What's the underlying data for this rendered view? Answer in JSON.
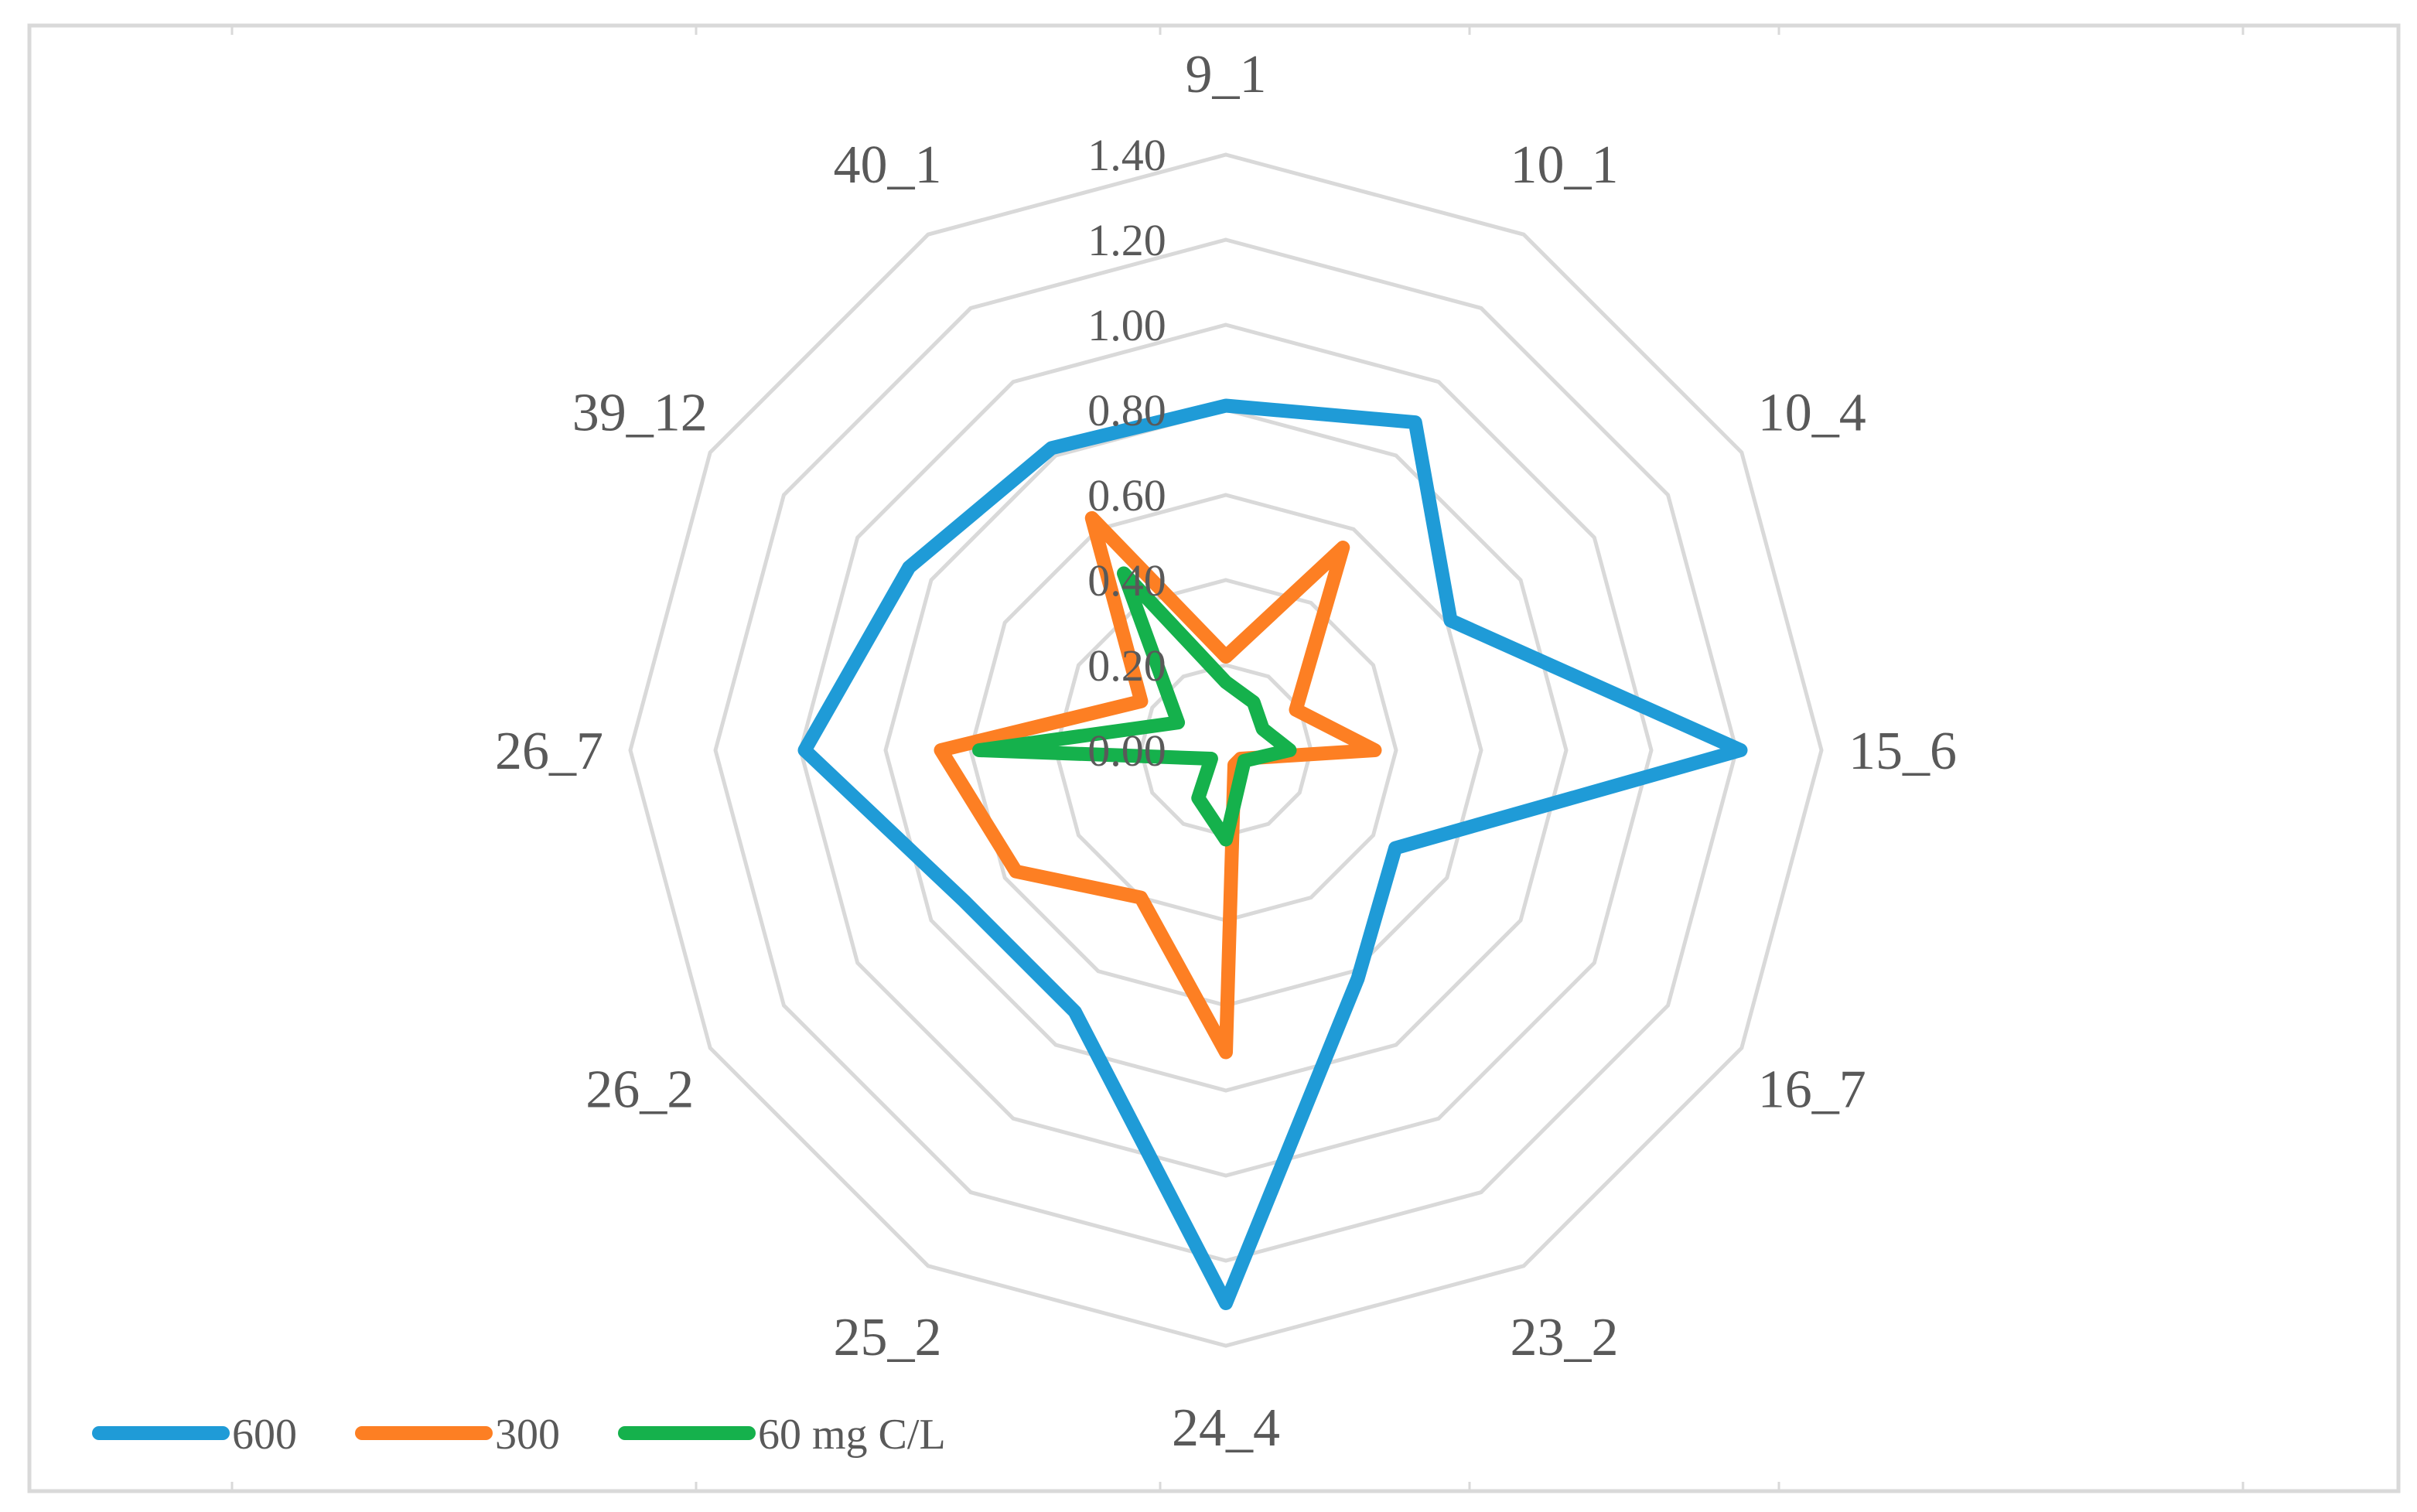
{
  "chart_data": {
    "type": "radar",
    "categories": [
      "9_1",
      "10_1",
      "10_4",
      "15_6",
      "16_7",
      "23_2",
      "24_4",
      "25_2",
      "26_2",
      "26_7",
      "39_12",
      "40_1"
    ],
    "radial_ticks": [
      "0.00",
      "0.20",
      "0.40",
      "0.60",
      "0.80",
      "1.00",
      "1.20",
      "1.40"
    ],
    "rlim": [
      0,
      1.4
    ],
    "series": [
      {
        "name": "600",
        "color": "#1f9bd7",
        "values": [
          0.81,
          0.89,
          0.61,
          1.21,
          0.46,
          0.62,
          1.3,
          0.71,
          0.71,
          0.99,
          0.86,
          0.82
        ]
      },
      {
        "name": "300",
        "color": "#fd7f23",
        "values": [
          0.22,
          0.55,
          0.19,
          0.35,
          0.04,
          0.04,
          0.71,
          0.4,
          0.57,
          0.67,
          0.23,
          0.63
        ]
      },
      {
        "name": "60 mg C/L",
        "color": "#15b14c",
        "values": [
          0.16,
          0.13,
          0.1,
          0.15,
          0.05,
          0.07,
          0.21,
          0.13,
          0.04,
          0.58,
          0.13,
          0.48
        ]
      }
    ],
    "legend_position": "bottom-left",
    "grid": true
  }
}
